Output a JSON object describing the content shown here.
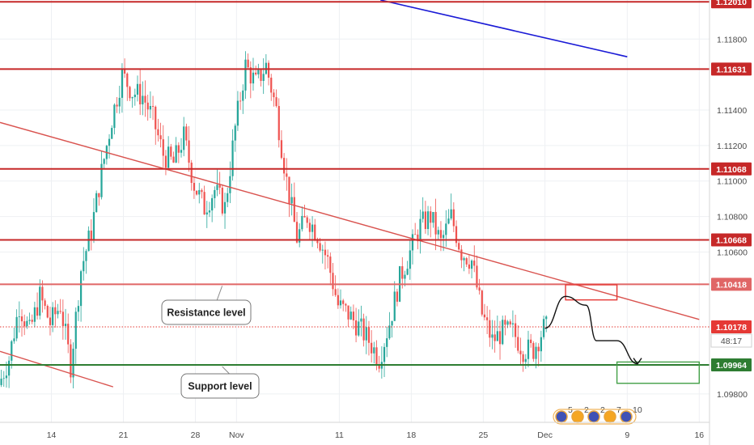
{
  "chart_data": {
    "type": "candlestick",
    "title": "",
    "xlabel": "",
    "ylabel": "",
    "ylim": [
      1.0964,
      1.1202
    ],
    "xlim": [
      "2019-10-09",
      "2019-12-17"
    ],
    "x_ticks": [
      {
        "date": "2019-10-14",
        "label": "14"
      },
      {
        "date": "2019-10-21",
        "label": "21"
      },
      {
        "date": "2019-10-28",
        "label": "28"
      },
      {
        "date": "2019-11-01",
        "label": "Nov"
      },
      {
        "date": "2019-11-11",
        "label": "11"
      },
      {
        "date": "2019-11-18",
        "label": "18"
      },
      {
        "date": "2019-11-25",
        "label": "25"
      },
      {
        "date": "2019-12-01",
        "label": "Dec"
      },
      {
        "date": "2019-12-09",
        "label": "9"
      },
      {
        "date": "2019-12-16",
        "label": "16"
      }
    ],
    "y_ticks": [
      {
        "value": 1.098,
        "label": "1.09800"
      },
      {
        "value": 1.106,
        "label": "1.10600"
      },
      {
        "value": 1.108,
        "label": "1.10800"
      },
      {
        "value": 1.11,
        "label": "1.11000"
      },
      {
        "value": 1.112,
        "label": "1.11200"
      },
      {
        "value": 1.114,
        "label": "1.11400"
      },
      {
        "value": 1.118,
        "label": "1.11800"
      }
    ],
    "grid": true,
    "price_path": [
      [
        "2019-10-09",
        1.0985
      ],
      [
        "2019-10-10",
        1.1
      ],
      [
        "2019-10-11",
        1.103
      ],
      [
        "2019-10-12",
        1.1015
      ],
      [
        "2019-10-13",
        1.1035
      ],
      [
        "2019-10-14",
        1.102
      ],
      [
        "2019-10-15",
        1.103
      ],
      [
        "2019-10-16",
        1.0996
      ],
      [
        "2019-10-17",
        1.105
      ],
      [
        "2019-10-18",
        1.1072
      ],
      [
        "2019-10-19",
        1.1105
      ],
      [
        "2019-10-20",
        1.1135
      ],
      [
        "2019-10-21",
        1.116
      ],
      [
        "2019-10-22",
        1.115
      ],
      [
        "2019-10-23",
        1.1148
      ],
      [
        "2019-10-24",
        1.1135
      ],
      [
        "2019-10-25",
        1.1115
      ],
      [
        "2019-10-26",
        1.111
      ],
      [
        "2019-10-27",
        1.1125
      ],
      [
        "2019-10-28",
        1.1098
      ],
      [
        "2019-10-29",
        1.1085
      ],
      [
        "2019-10-30",
        1.1095
      ],
      [
        "2019-10-31",
        1.1085
      ],
      [
        "2019-11-01",
        1.113
      ],
      [
        "2019-11-02",
        1.1165
      ],
      [
        "2019-11-03",
        1.1155
      ],
      [
        "2019-11-04",
        1.1165
      ],
      [
        "2019-11-05",
        1.114
      ],
      [
        "2019-11-06",
        1.11
      ],
      [
        "2019-11-07",
        1.1068
      ],
      [
        "2019-11-08",
        1.108
      ],
      [
        "2019-11-09",
        1.107
      ],
      [
        "2019-11-10",
        1.1055
      ],
      [
        "2019-11-11",
        1.103
      ],
      [
        "2019-11-12",
        1.1025
      ],
      [
        "2019-11-13",
        1.1018
      ],
      [
        "2019-11-14",
        1.101
      ],
      [
        "2019-11-15",
        1.1
      ],
      [
        "2019-11-16",
        1.102
      ],
      [
        "2019-11-17",
        1.1045
      ],
      [
        "2019-11-18",
        1.106
      ],
      [
        "2019-11-19",
        1.1075
      ],
      [
        "2019-11-20",
        1.108
      ],
      [
        "2019-11-21",
        1.1065
      ],
      [
        "2019-11-22",
        1.108
      ],
      [
        "2019-11-23",
        1.106
      ],
      [
        "2019-11-24",
        1.1055
      ],
      [
        "2019-11-25",
        1.1025
      ],
      [
        "2019-11-26",
        1.101
      ],
      [
        "2019-11-27",
        1.1015
      ],
      [
        "2019-11-28",
        1.1015
      ],
      [
        "2019-11-29",
        1.1005
      ],
      [
        "2019-11-30",
        1.1005
      ],
      [
        "2019-12-01",
        1.1017
      ]
    ],
    "horizontal_levels": [
      {
        "value": 1.1201,
        "label": "1.12010",
        "color": "#c62828"
      },
      {
        "value": 1.11631,
        "label": "1.11631",
        "color": "#c62828"
      },
      {
        "value": 1.11068,
        "label": "1.11068",
        "color": "#c62828"
      },
      {
        "value": 1.10668,
        "label": "1.10668",
        "color": "#c62828"
      },
      {
        "value": 1.10418,
        "label": "1.10418",
        "color": "#e06666"
      },
      {
        "value": 1.09964,
        "label": "1.09964",
        "color": "#2e7d32"
      }
    ],
    "last_price": {
      "value": 1.10178,
      "label": "1.10178",
      "countdown": "48:17",
      "color": "#e53935"
    },
    "trendlines": [
      {
        "name": "descending-resistance",
        "from": [
          "2019-10-09",
          1.1133
        ],
        "to": [
          "2019-12-16",
          1.1022
        ],
        "color": "#d9534f"
      },
      {
        "name": "upper-channel",
        "from": [
          "2019-11-15",
          1.1202
        ],
        "to": [
          "2019-12-09",
          1.117
        ],
        "color": "#1a1ad6"
      },
      {
        "name": "lower-channel",
        "from": [
          "2019-10-09",
          1.1004
        ],
        "to": [
          "2019-10-20",
          1.0984
        ],
        "color": "#d9534f"
      }
    ],
    "annotations": [
      {
        "text": "Resistance level",
        "points_to": [
          "2019-10-31",
          1.10418
        ]
      },
      {
        "text": "Support level",
        "points_to": [
          "2019-10-31",
          1.09964
        ]
      }
    ],
    "projection": [
      [
        "2019-12-01",
        1.1017
      ],
      [
        "2019-12-03",
        1.1035
      ],
      [
        "2019-12-05",
        1.103
      ],
      [
        "2019-12-06",
        1.101
      ],
      [
        "2019-12-08",
        1.101
      ],
      [
        "2019-12-10",
        1.0997
      ]
    ],
    "boxes": [
      {
        "name": "resistance-zone",
        "from": [
          "2019-12-03",
          1.10415
        ],
        "to": [
          "2019-12-08",
          1.1033
        ],
        "color": "#e53935"
      },
      {
        "name": "target-zone",
        "from": [
          "2019-12-08",
          1.0998
        ],
        "to": [
          "2019-12-16",
          1.0986
        ],
        "color": "#43a047"
      }
    ],
    "events": {
      "icon": "economic-calendar-flags-icon",
      "counts": [
        "5",
        "2",
        "2",
        "7",
        "10"
      ]
    }
  }
}
